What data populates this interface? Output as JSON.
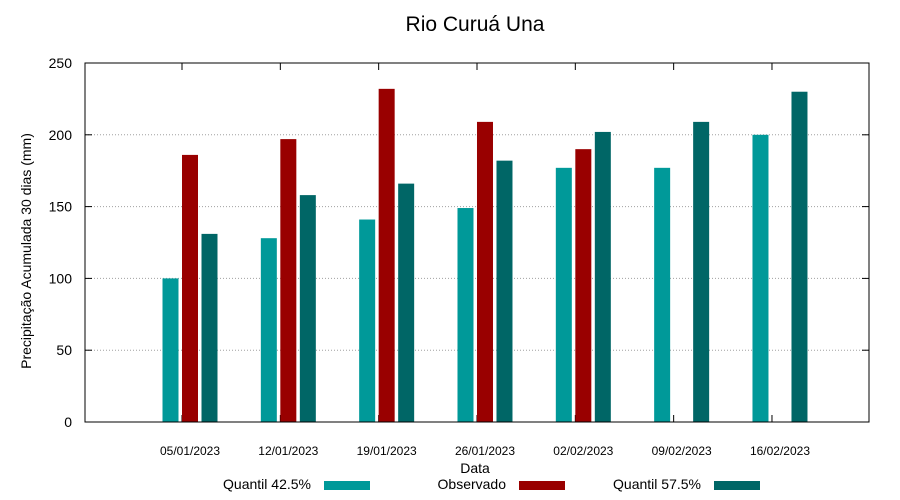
{
  "chart_data": {
    "type": "bar",
    "title": "Rio Curuá Una",
    "xlabel": "Data",
    "ylabel": "Precipitação Acumulada 30 dias (mm)",
    "ylim": [
      0,
      250
    ],
    "yticks": [
      "0",
      "50",
      "100",
      "150",
      "200",
      "250"
    ],
    "grid": true,
    "legend_position": "bottom",
    "categories": [
      "05/01/2023",
      "12/01/2023",
      "19/01/2023",
      "26/01/2023",
      "02/02/2023",
      "09/02/2023",
      "16/02/2023"
    ],
    "series": [
      {
        "name": "Quantil 42.5%",
        "color": "#009999",
        "values": [
          100,
          128,
          141,
          149,
          177,
          177,
          200
        ]
      },
      {
        "name": "Observado",
        "color": "#990000",
        "values": [
          186,
          197,
          232,
          209,
          190,
          null,
          null
        ]
      },
      {
        "name": "Quantil 57.5%",
        "color": "#006666",
        "values": [
          131,
          158,
          166,
          182,
          202,
          209,
          230
        ]
      }
    ]
  }
}
